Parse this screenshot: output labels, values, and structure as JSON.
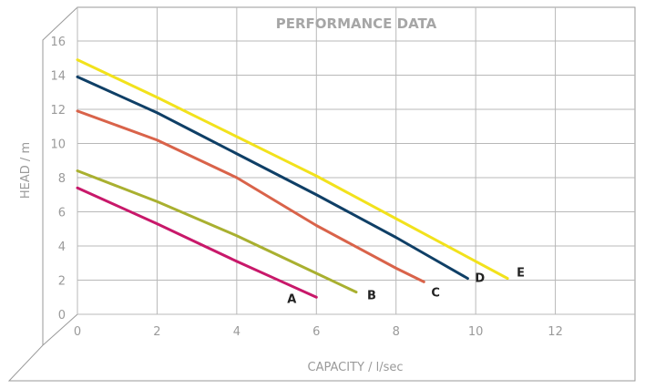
{
  "chart_data": {
    "type": "line",
    "title": "PERFORMANCE DATA",
    "xlabel": "CAPACITY / l/sec",
    "ylabel": "HEAD / m",
    "xlim": [
      0,
      14
    ],
    "ylim": [
      0,
      16
    ],
    "xticks": [
      0,
      2,
      4,
      6,
      8,
      10,
      12
    ],
    "yticks": [
      0,
      2,
      4,
      6,
      8,
      10,
      12,
      14,
      16
    ],
    "grid": true,
    "legend": "end-of-line labels",
    "series": [
      {
        "name": "A",
        "color": "#c8186a",
        "x": [
          0,
          2,
          4,
          6
        ],
        "y": [
          7.4,
          5.3,
          3.1,
          1.0
        ]
      },
      {
        "name": "B",
        "color": "#a9b030",
        "x": [
          0,
          2,
          4,
          6,
          7.0
        ],
        "y": [
          8.4,
          6.6,
          4.6,
          2.4,
          1.3
        ]
      },
      {
        "name": "C",
        "color": "#d9634a",
        "x": [
          0,
          2,
          4,
          6,
          8,
          8.7
        ],
        "y": [
          11.9,
          10.2,
          8.0,
          5.2,
          2.7,
          1.9
        ]
      },
      {
        "name": "D",
        "color": "#0f3f66",
        "x": [
          0,
          2,
          4,
          6,
          8,
          9.8
        ],
        "y": [
          13.9,
          11.8,
          9.4,
          7.0,
          4.5,
          2.1
        ]
      },
      {
        "name": "E",
        "color": "#f2e21c",
        "x": [
          0,
          2,
          4,
          6,
          8,
          10.8
        ],
        "y": [
          14.9,
          12.7,
          10.4,
          8.1,
          5.6,
          2.1
        ]
      }
    ]
  }
}
